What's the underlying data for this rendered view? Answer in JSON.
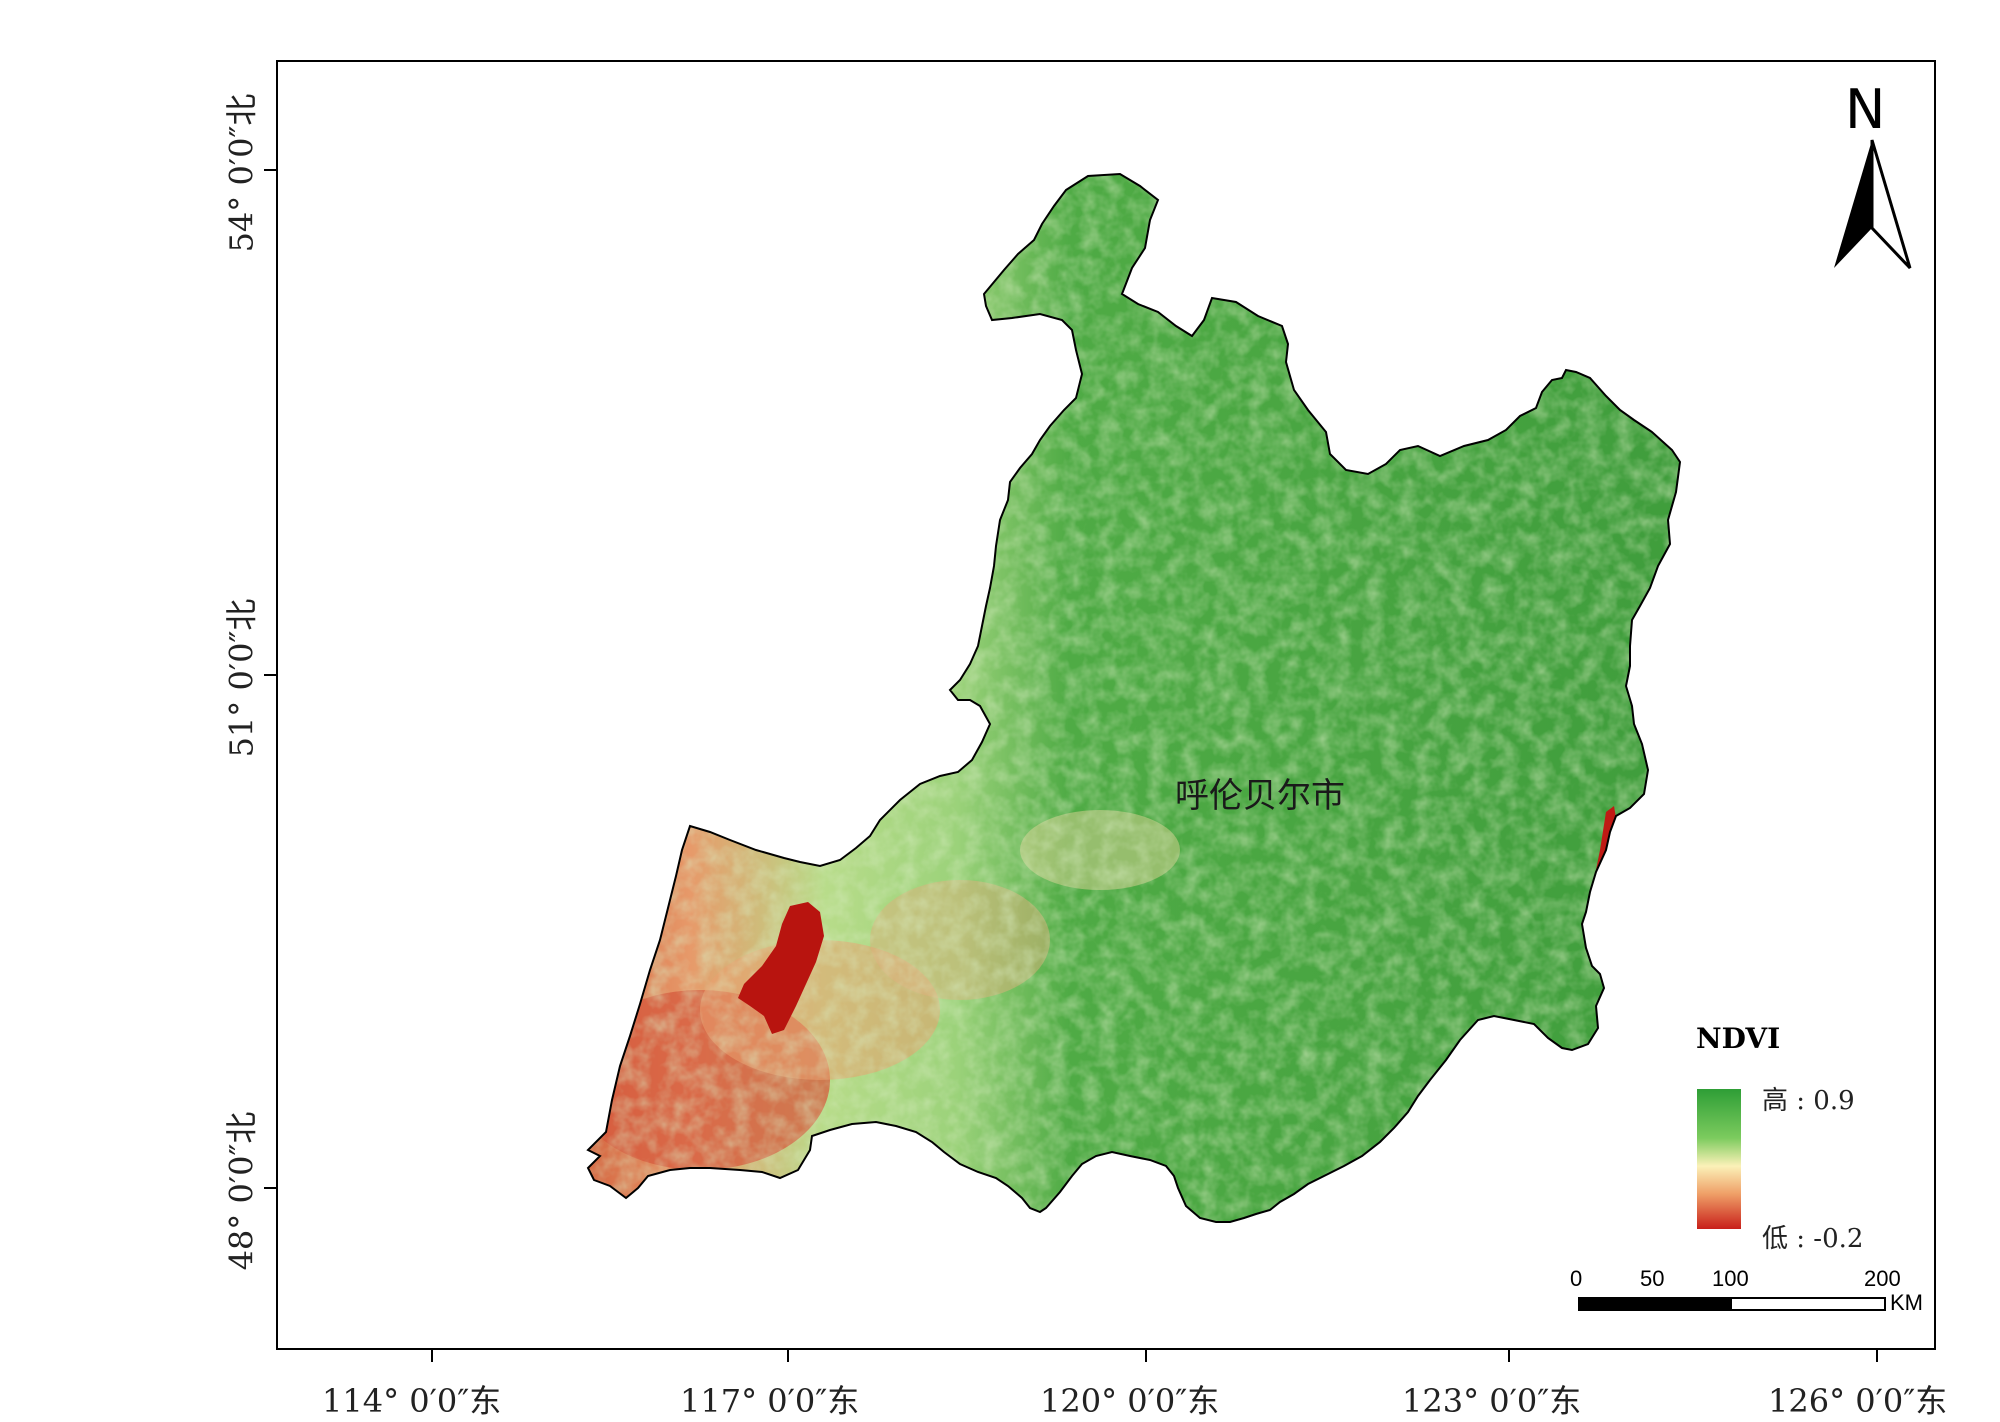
{
  "map": {
    "region_label": "呼伦贝尔市",
    "north_label": "N",
    "x_ticks": [
      "114° 0′0″东",
      "117° 0′0″东",
      "120° 0′0″东",
      "123° 0′0″东",
      "126° 0′0″东"
    ],
    "y_ticks": [
      "54° 0′0″北",
      "51° 0′0″北",
      "48° 0′0″北"
    ],
    "legend": {
      "title": "NDVI",
      "high_label": "高 : 0.9",
      "low_label": "低 : -0.2",
      "colors": {
        "high": "#2e9e36",
        "mid": "#fbf1b8",
        "low": "#c81f1a"
      }
    },
    "scalebar": {
      "ticks": [
        "0",
        "50",
        "100",
        "200"
      ],
      "unit": "KM"
    }
  }
}
